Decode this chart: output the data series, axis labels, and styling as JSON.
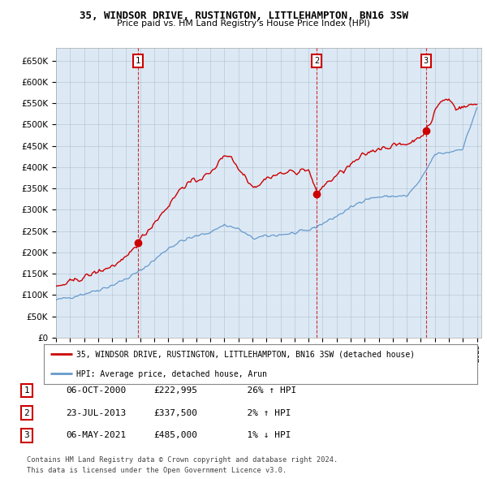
{
  "title": "35, WINDSOR DRIVE, RUSTINGTON, LITTLEHAMPTON, BN16 3SW",
  "subtitle": "Price paid vs. HM Land Registry's House Price Index (HPI)",
  "legend_line1": "35, WINDSOR DRIVE, RUSTINGTON, LITTLEHAMPTON, BN16 3SW (detached house)",
  "legend_line2": "HPI: Average price, detached house, Arun",
  "footer1": "Contains HM Land Registry data © Crown copyright and database right 2024.",
  "footer2": "This data is licensed under the Open Government Licence v3.0.",
  "sale_points": [
    {
      "num": 1,
      "date": "06-OCT-2000",
      "price": 222995,
      "pct": "26%",
      "dir": "↑"
    },
    {
      "num": 2,
      "date": "23-JUL-2013",
      "price": 337500,
      "pct": "2%",
      "dir": "↑"
    },
    {
      "num": 3,
      "date": "06-MAY-2021",
      "price": 485000,
      "pct": "1%",
      "dir": "↓"
    }
  ],
  "ylim": [
    0,
    680000
  ],
  "yticks": [
    0,
    50000,
    100000,
    150000,
    200000,
    250000,
    300000,
    350000,
    400000,
    450000,
    500000,
    550000,
    600000,
    650000
  ],
  "red_color": "#cc0000",
  "blue_color": "#6699cc",
  "chart_bg": "#dce9f5",
  "vline_color": "#cc0000",
  "background_color": "#ffffff",
  "grid_color": "#aabbcc"
}
